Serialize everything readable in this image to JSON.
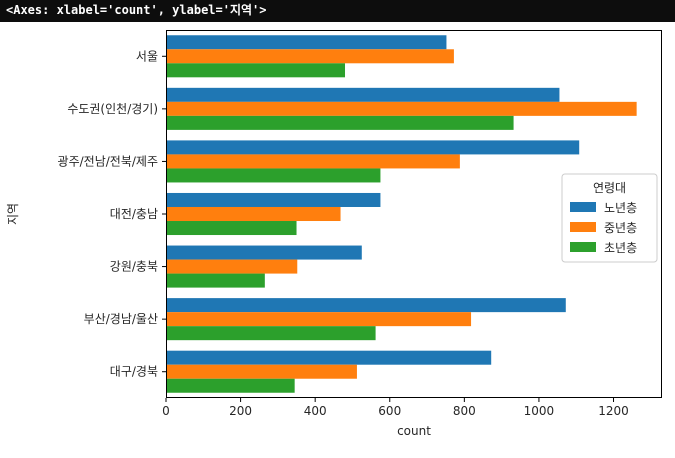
{
  "header": {
    "repr_text": "<Axes: xlabel='count', ylabel='지역'>"
  },
  "chart_data": {
    "type": "bar",
    "orientation": "horizontal",
    "xlabel": "count",
    "ylabel": "지역",
    "xlim": [
      0,
      1330
    ],
    "xticks": [
      0,
      200,
      400,
      600,
      800,
      1000,
      1200
    ],
    "grid": false,
    "legend_title": "연령대",
    "legend_position": "center-right",
    "categories": [
      "서울",
      "수도권(인천/경기)",
      "광주/전남/전북/제주",
      "대전/충남",
      "강원/충북",
      "부산/경남/울산",
      "대구/경북"
    ],
    "series": [
      {
        "name": "노년층",
        "color": "#1f77b4",
        "values": [
          752,
          1055,
          1108,
          575,
          525,
          1072,
          872
        ]
      },
      {
        "name": "중년층",
        "color": "#ff7f0e",
        "values": [
          772,
          1262,
          788,
          468,
          352,
          818,
          512
        ]
      },
      {
        "name": "초년층",
        "color": "#2ca02c",
        "values": [
          480,
          932,
          575,
          350,
          265,
          562,
          345
        ]
      }
    ]
  }
}
